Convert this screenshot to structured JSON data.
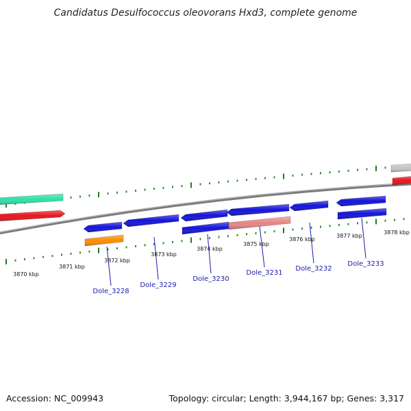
{
  "title": "Candidatus Desulfococcus oleovorans Hxd3, complete genome",
  "footer": {
    "accession": "Accession: NC_009943",
    "summary": "Topology: circular; Length: 3,944,167 bp; Genes: 3,317"
  },
  "colors": {
    "backbone": "#7a7a7a",
    "tick_major": "#1f7a1f",
    "tick_minor": "#2e8b2e",
    "gene_blue": "#1414d8",
    "gene_red": "#e8141e",
    "gene_teal": "#2fe0a8",
    "gene_orange": "#ff8c00",
    "gene_salmon": "#e88484",
    "gene_grey": "#c4c4c4",
    "label_blue": "#1a1aaa"
  },
  "scale_labels": [
    "3870 kbp",
    "3871 kbp",
    "3872 kbp",
    "3873 kbp",
    "3874 kbp",
    "3875 kbp",
    "3876 kbp",
    "3877 kbp",
    "3878 kbp"
  ],
  "gene_labels": [
    "Dole_3228",
    "Dole_3229",
    "Dole_3230",
    "Dole_3231",
    "Dole_3232",
    "Dole_3233"
  ]
}
